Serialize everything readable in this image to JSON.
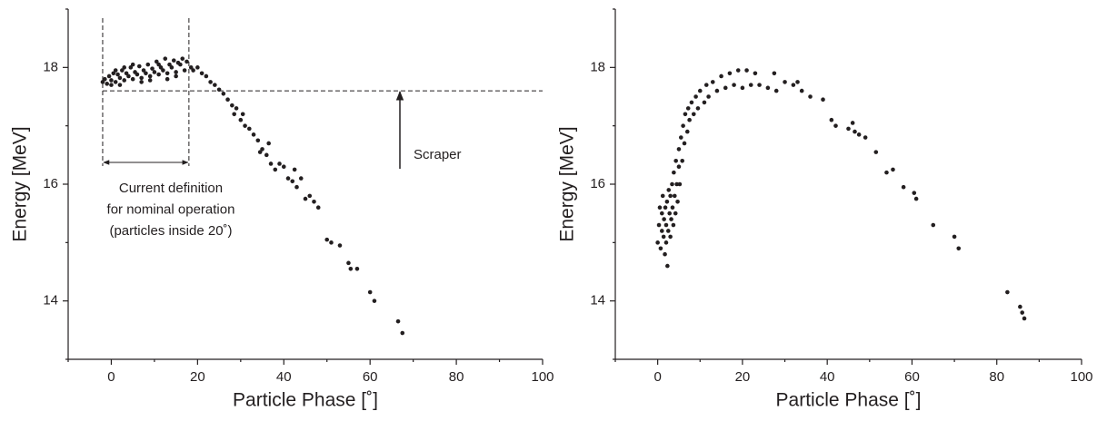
{
  "chart_data": [
    {
      "type": "scatter",
      "color": "#231f20",
      "x_label": "Particle Phase [˚]",
      "y_label": "Energy [MeV]",
      "xlim": [
        -10,
        100
      ],
      "ylim": [
        13,
        19
      ],
      "xticks": [
        0,
        20,
        40,
        60,
        80,
        100
      ],
      "yticks": [
        14,
        16,
        18
      ],
      "xminorticks": [
        -10,
        10,
        30,
        50,
        70,
        90
      ],
      "yminorticks": [
        13,
        15,
        17,
        19
      ],
      "annotations": {
        "scraper_label": "Scraper",
        "note": [
          "Current definition",
          "for nominal operation",
          "(particles inside 20˚)"
        ],
        "threshold": 17.6,
        "window": [
          -2,
          18
        ]
      },
      "x": [
        -2,
        -1.5,
        -1,
        -0.5,
        0,
        0.5,
        1,
        1.5,
        2,
        2.5,
        3,
        3.5,
        4,
        4.5,
        5,
        5.5,
        6,
        6.5,
        7,
        7.5,
        8,
        8.5,
        9,
        9.5,
        10,
        10.5,
        11,
        11.5,
        12,
        12.5,
        13,
        13.5,
        14,
        14.5,
        15,
        15.5,
        16,
        16.5,
        17,
        17.5,
        1,
        3,
        5,
        7,
        9,
        11,
        13,
        15,
        0,
        2,
        18.5,
        19,
        20,
        21,
        22,
        23,
        24,
        25,
        26,
        27,
        28,
        28.5,
        29,
        30,
        31,
        32,
        33,
        34,
        34.5,
        35,
        36,
        37,
        38,
        39,
        40,
        41,
        42,
        43,
        44,
        45,
        46,
        47,
        48,
        50,
        51,
        53,
        55,
        55.5,
        57,
        60,
        61,
        66.5,
        67.5,
        30.5,
        36.5,
        42.5
      ],
      "values": [
        17.75,
        17.8,
        17.72,
        17.85,
        17.78,
        17.9,
        17.75,
        17.88,
        17.82,
        17.95,
        17.78,
        17.9,
        17.85,
        18.0,
        17.8,
        17.92,
        17.88,
        18.02,
        17.82,
        17.95,
        17.9,
        18.05,
        17.85,
        17.98,
        17.92,
        18.1,
        17.88,
        18.0,
        17.95,
        18.15,
        17.9,
        18.05,
        18.0,
        18.12,
        17.92,
        18.08,
        18.05,
        18.15,
        17.95,
        18.1,
        17.95,
        18.0,
        18.05,
        17.75,
        17.78,
        18.05,
        17.8,
        17.85,
        17.7,
        17.7,
        18.0,
        17.95,
        18.0,
        17.9,
        17.85,
        17.75,
        17.7,
        17.62,
        17.55,
        17.45,
        17.35,
        17.2,
        17.3,
        17.1,
        17.0,
        16.95,
        16.85,
        16.75,
        16.55,
        16.6,
        16.5,
        16.35,
        16.25,
        16.35,
        16.3,
        16.1,
        16.05,
        15.95,
        16.1,
        15.75,
        15.8,
        15.7,
        15.6,
        15.05,
        15.0,
        14.95,
        14.65,
        14.55,
        14.55,
        14.15,
        14.0,
        13.65,
        13.45,
        17.2,
        16.7,
        16.25
      ]
    },
    {
      "type": "scatter",
      "color": "#231f20",
      "x_label": "Particle Phase [˚]",
      "y_label": "Energy [MeV]",
      "xlim": [
        -10,
        100
      ],
      "ylim": [
        13,
        19
      ],
      "xticks": [
        0,
        20,
        40,
        60,
        80,
        100
      ],
      "yticks": [
        14,
        16,
        18
      ],
      "xminorticks": [
        -10,
        10,
        30,
        50,
        70,
        90
      ],
      "yminorticks": [
        13,
        15,
        17,
        19
      ],
      "x": [
        0,
        0.3,
        0.5,
        0.7,
        1,
        1,
        1.2,
        1.4,
        1.5,
        1.7,
        1.8,
        2,
        2,
        2.2,
        2.3,
        2.5,
        2.6,
        2.8,
        3,
        3,
        3.2,
        3.4,
        3.5,
        3.7,
        3.8,
        4,
        4.2,
        4.3,
        4.5,
        4.7,
        5,
        5,
        5.2,
        5.5,
        5.8,
        6,
        6.3,
        6.5,
        7,
        7.2,
        7.5,
        8,
        8.5,
        9,
        9.5,
        10,
        11,
        11.5,
        12,
        13,
        14,
        15,
        16,
        17,
        18,
        19,
        20,
        21,
        22,
        23,
        24,
        26,
        27.5,
        28,
        30,
        32,
        33,
        34,
        36,
        39,
        41,
        42,
        45,
        46,
        46.5,
        47.5,
        49,
        51.5,
        54,
        55.5,
        58,
        60.5,
        61,
        65,
        70,
        71,
        82.5,
        85.5,
        86,
        86.5
      ],
      "values": [
        15.0,
        15.3,
        15.6,
        14.9,
        15.2,
        15.5,
        15.8,
        15.1,
        15.4,
        14.8,
        15.6,
        15.0,
        15.3,
        15.7,
        14.6,
        15.2,
        15.9,
        15.5,
        15.1,
        15.8,
        15.4,
        16.0,
        15.6,
        15.3,
        16.2,
        15.8,
        15.5,
        16.4,
        16.0,
        15.7,
        16.3,
        16.6,
        16.0,
        16.8,
        16.4,
        17.0,
        16.7,
        17.2,
        16.9,
        17.3,
        17.1,
        17.4,
        17.2,
        17.5,
        17.3,
        17.6,
        17.4,
        17.7,
        17.5,
        17.75,
        17.6,
        17.85,
        17.65,
        17.9,
        17.7,
        17.95,
        17.65,
        17.95,
        17.7,
        17.9,
        17.7,
        17.65,
        17.9,
        17.6,
        17.75,
        17.7,
        17.75,
        17.6,
        17.5,
        17.45,
        17.1,
        17.0,
        16.95,
        17.05,
        16.9,
        16.85,
        16.8,
        16.55,
        16.2,
        16.25,
        15.95,
        15.85,
        15.75,
        15.3,
        15.1,
        14.9,
        14.15,
        13.9,
        13.8,
        13.7
      ]
    }
  ]
}
